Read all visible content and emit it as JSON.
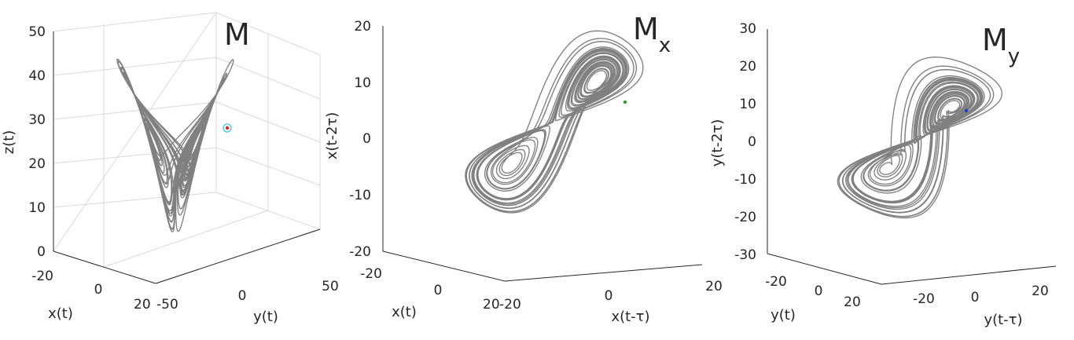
{
  "chart_data": [
    {
      "type": "line",
      "title": "M",
      "title_subscript": "",
      "xlabel": "x(t)",
      "ylabel": "y(t)",
      "zlabel": "z(t)",
      "xlim": [
        -20,
        20
      ],
      "ylim": [
        -50,
        50
      ],
      "zlim": [
        0,
        50
      ],
      "xticks": [
        "-20",
        "0",
        "20"
      ],
      "yticks": [
        "-50",
        "0",
        "50"
      ],
      "zticks": [
        "0",
        "10",
        "20",
        "30",
        "40",
        "50"
      ],
      "grid": true,
      "series": [
        {
          "role": "trajectory",
          "color": "#808080"
        },
        {
          "role": "marker",
          "color": "#d62728",
          "ring_color": "#5fc8e8",
          "x": 8,
          "y": 5,
          "z": 28
        }
      ]
    },
    {
      "type": "line",
      "title": "M",
      "title_subscript": "x",
      "xlabel": "x(t)",
      "ylabel": "x(t-τ)",
      "zlabel": "x(t-2τ)",
      "xlim": [
        -20,
        20
      ],
      "ylim": [
        -20,
        20
      ],
      "zlim": [
        -20,
        20
      ],
      "xticks": [
        "-20",
        "0",
        "20"
      ],
      "yticks": [
        "-20",
        "0",
        "20"
      ],
      "zticks": [
        "-20",
        "-10",
        "0",
        "10",
        "20"
      ],
      "grid": false,
      "series": [
        {
          "role": "trajectory",
          "color": "#808080"
        },
        {
          "role": "marker",
          "color": "#2ca02c",
          "x": 8,
          "y": 8,
          "z": 6.5
        }
      ]
    },
    {
      "type": "line",
      "title": "M",
      "title_subscript": "y",
      "xlabel": "y(t)",
      "ylabel": "y(t-τ)",
      "zlabel": "y(t-2τ)",
      "xlim": [
        -20,
        20
      ],
      "ylim": [
        -30,
        30
      ],
      "zlim": [
        -30,
        30
      ],
      "xticks": [
        "-20",
        "0",
        "20"
      ],
      "yticks": [
        "-20",
        "0",
        "20"
      ],
      "zticks": [
        "-30",
        "-20",
        "-10",
        "0",
        "10",
        "20",
        "30"
      ],
      "grid": false,
      "series": [
        {
          "role": "trajectory",
          "color": "#808080"
        },
        {
          "role": "marker",
          "color": "#1f3fbf",
          "x": 8,
          "y": 8,
          "z": 8
        }
      ]
    }
  ]
}
